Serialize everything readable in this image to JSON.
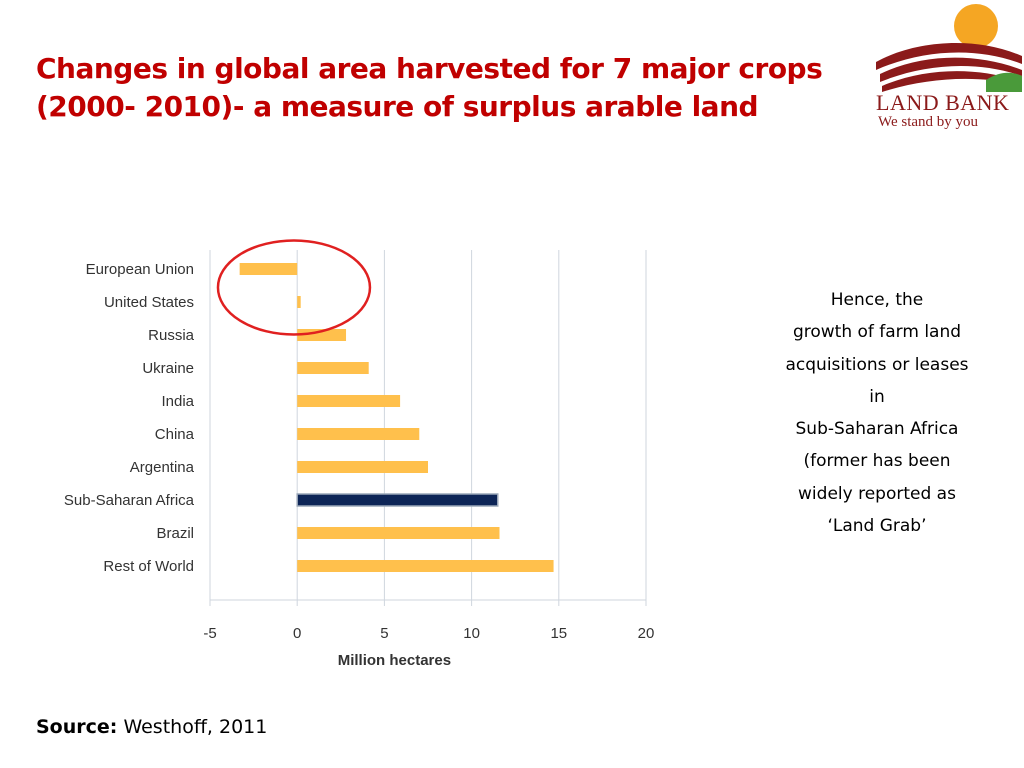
{
  "slide": {
    "title_lines": [
      "Changes in global area harvested for 7 major crops",
      "(2000- 2010)- a measure of surplus arable land"
    ],
    "side_text_lines": [
      "Hence, the",
      "growth of farm land",
      "acquisitions or leases",
      "in",
      "Sub-Saharan Africa",
      "(former has been",
      "widely reported as",
      "‘Land Grab’"
    ],
    "source_label": "Source:",
    "source_value": "Westhoff, 2011"
  },
  "logo": {
    "line1": "LAND BANK",
    "line2": "We stand by you",
    "sun_color": "#f5a623",
    "stripe_color": "#8b1a1a",
    "grass_color": "#4a9a3a"
  },
  "chart_data": {
    "type": "bar",
    "orientation": "horizontal",
    "categories": [
      "European Union",
      "United States",
      "Russia",
      "Ukraine",
      "India",
      "China",
      "Argentina",
      "Sub-Saharan Africa",
      "Brazil",
      "Rest of World"
    ],
    "values": [
      -3.3,
      0.2,
      2.8,
      4.1,
      5.9,
      7.0,
      7.5,
      11.5,
      11.6,
      14.7
    ],
    "xlabel": "Million hectares",
    "xlim": [
      -5,
      20
    ],
    "xticks": [
      "-5",
      "0",
      "5",
      "10",
      "15",
      "20"
    ],
    "grid": true,
    "bar_color": "#ffc04c",
    "highlight_category": "Sub-Saharan Africa",
    "highlight_color": "#0d2557",
    "annotation": "red circle around European Union and United States bars",
    "annotation_color": "#e02020"
  }
}
